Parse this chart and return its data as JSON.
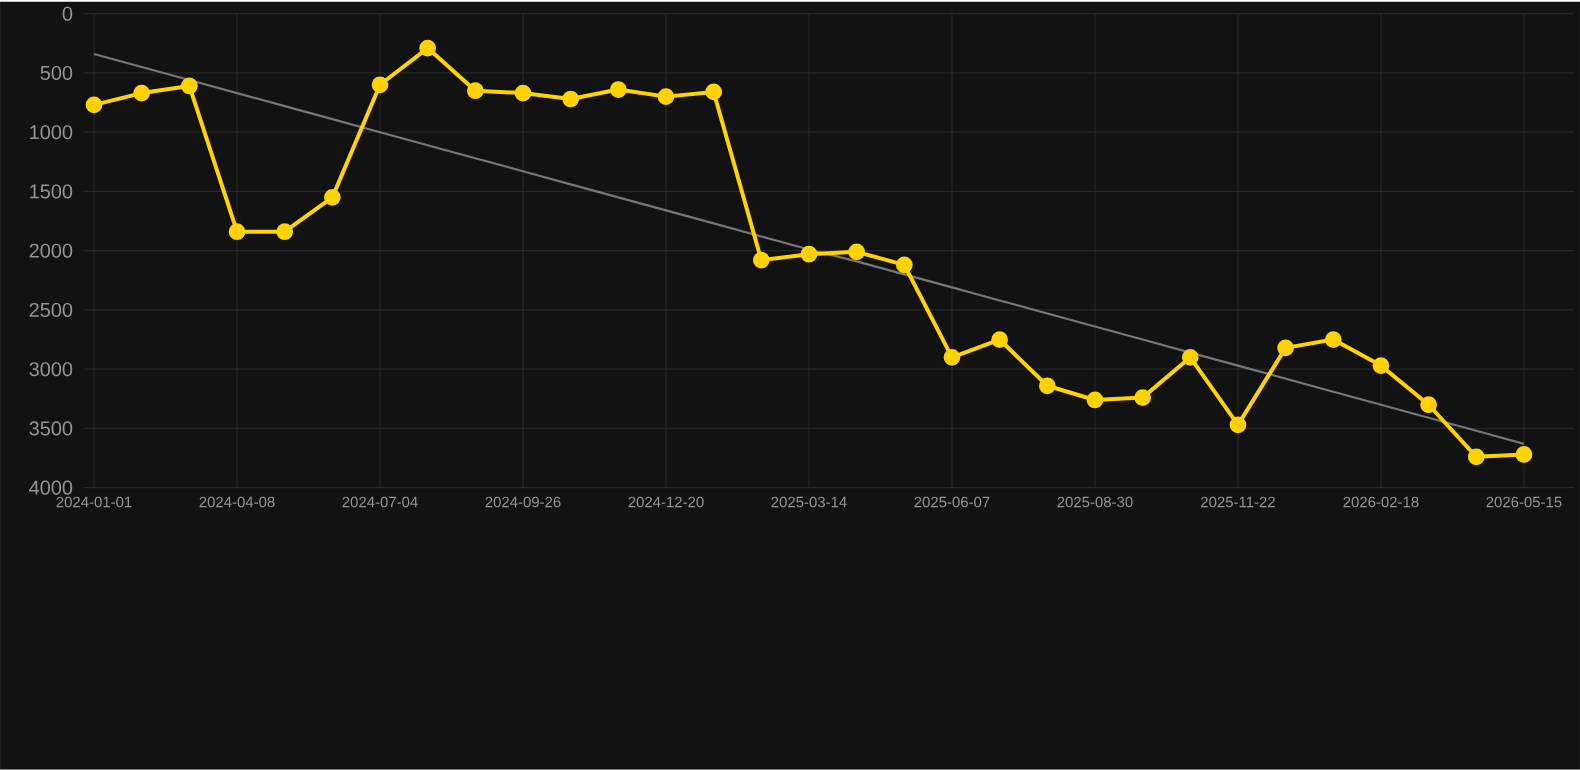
{
  "chart_data": {
    "type": "line",
    "categories": [
      "2024-01-01",
      null,
      null,
      "2024-04-08",
      null,
      null,
      "2024-07-04",
      null,
      null,
      "2024-09-26",
      null,
      null,
      "2024-12-20",
      null,
      null,
      "2025-03-14",
      null,
      null,
      "2025-06-07",
      null,
      null,
      "2025-08-30",
      null,
      null,
      "2025-11-22",
      null,
      null,
      "2026-02-18",
      null,
      null,
      "2026-05-15"
    ],
    "ylim": [
      4000,
      0
    ],
    "yticks": [
      0,
      500,
      1000,
      1500,
      2000,
      2500,
      3000,
      3500,
      4000
    ],
    "grid": true,
    "series": [
      {
        "color": "#777777",
        "marker": "none",
        "values": [
          340,
          450,
          560,
          670,
          780,
          890,
          1000,
          1110,
          1220,
          1330,
          1440,
          1550,
          1660,
          1770,
          1880,
          1990,
          2090,
          2200,
          2310,
          2420,
          2530,
          2640,
          2750,
          2860,
          2970,
          3080,
          3190,
          3300,
          3410,
          3520,
          3630
        ]
      },
      {
        "color": "#ffd200",
        "marker": "circle",
        "values": [
          770,
          670,
          610,
          1840,
          1840,
          1550,
          600,
          290,
          650,
          670,
          720,
          640,
          700,
          660,
          2080,
          2030,
          2010,
          2120,
          2900,
          2750,
          3140,
          3260,
          3240,
          2900,
          3470,
          2820,
          2750,
          2970,
          3300,
          3740,
          3720
        ]
      }
    ]
  }
}
